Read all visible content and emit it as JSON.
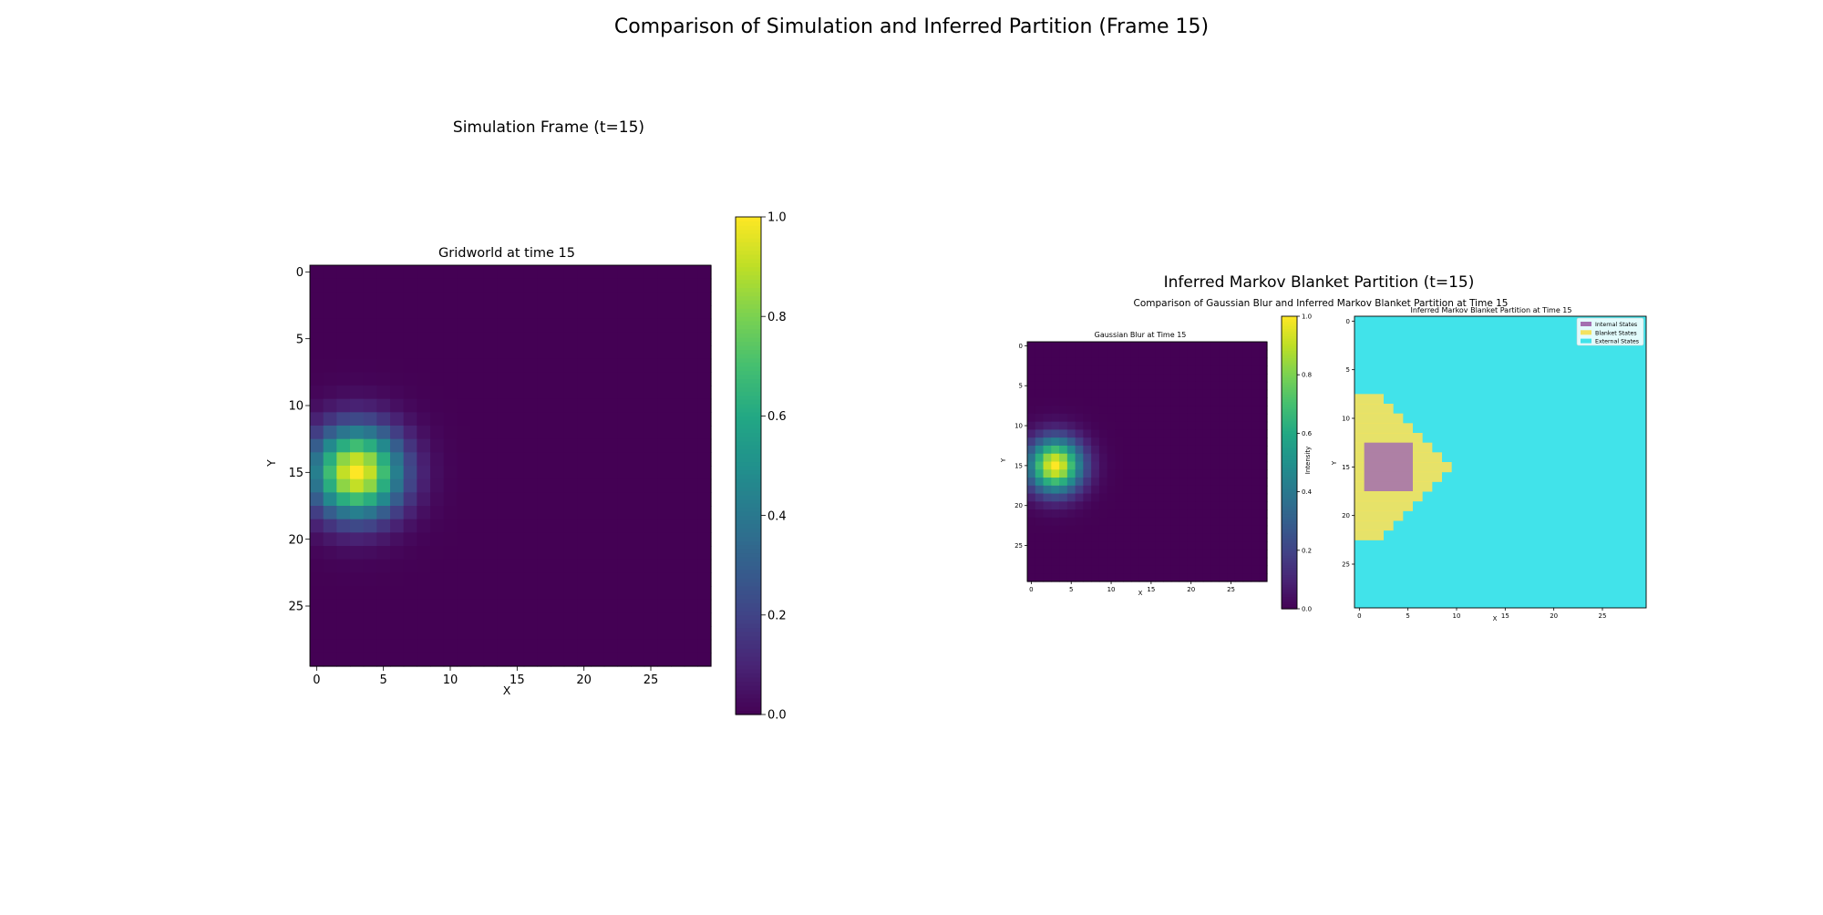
{
  "page": {
    "suptitle": "Comparison of Simulation and Inferred Partition (Frame 15)",
    "left_panel_title": "Simulation Frame (t=15)",
    "right_panel_title": "Inferred Markov Blanket Partition (t=15)"
  },
  "chart_data": [
    {
      "type": "heatmap",
      "title": "Gridworld at time 15",
      "xlabel": "X",
      "ylabel": "Y",
      "grid_size": [
        30,
        30
      ],
      "blob_center": [
        3,
        15
      ],
      "blob_sigma": 2.3,
      "xticks": [
        0,
        5,
        10,
        15,
        20,
        25
      ],
      "yticks": [
        0,
        5,
        10,
        15,
        20,
        25
      ],
      "colormap": "viridis",
      "colorbar": {
        "label": "",
        "range": [
          0,
          1
        ],
        "ticks": [
          "0.0",
          "0.2",
          "0.4",
          "0.6",
          "0.8",
          "1.0"
        ]
      },
      "grid": false
    },
    {
      "type": "heatmap",
      "figure_title": "Comparison of Gaussian Blur and Inferred Markov Blanket Partition at Time 15",
      "title": "Gaussian Blur at Time 15",
      "xlabel": "X",
      "ylabel": "Y",
      "grid_size": [
        30,
        30
      ],
      "blob_center": [
        3,
        15
      ],
      "blob_sigma": 2.3,
      "xticks": [
        0,
        5,
        10,
        15,
        20,
        25
      ],
      "yticks": [
        0,
        5,
        10,
        15,
        20,
        25
      ],
      "colormap": "viridis",
      "colorbar": {
        "label": "Intensity",
        "range": [
          0,
          1
        ],
        "ticks": [
          "0.0",
          "0.2",
          "0.4",
          "0.6",
          "0.8",
          "1.0"
        ]
      }
    },
    {
      "type": "heatmap",
      "title": "Inferred Markov Blanket Partition at Time 15",
      "xlabel": "X",
      "ylabel": "Y",
      "grid_size": [
        30,
        30
      ],
      "xticks": [
        0,
        5,
        10,
        15,
        20,
        25
      ],
      "yticks": [
        0,
        5,
        10,
        15,
        20,
        25
      ],
      "legend": {
        "placement": "upper-right",
        "items": [
          {
            "label": "Internal States",
            "color": "#a36fb0"
          },
          {
            "label": "Blanket States",
            "color": "#f3e25f"
          },
          {
            "label": "External States",
            "color": "#41e3ea"
          }
        ]
      },
      "internal_region": {
        "x": [
          1,
          5
        ],
        "y": [
          13,
          17
        ]
      },
      "blanket_rows": [
        {
          "y": 8,
          "x_max": 2
        },
        {
          "y": 9,
          "x_max": 3
        },
        {
          "y": 10,
          "x_max": 4
        },
        {
          "y": 11,
          "x_max": 5
        },
        {
          "y": 12,
          "x_max": 6
        },
        {
          "y": 13,
          "x_max": 7
        },
        {
          "y": 14,
          "x_max": 8
        },
        {
          "y": 15,
          "x_max": 9
        },
        {
          "y": 16,
          "x_max": 8
        },
        {
          "y": 17,
          "x_max": 7
        },
        {
          "y": 18,
          "x_max": 6
        },
        {
          "y": 19,
          "x_max": 5
        },
        {
          "y": 20,
          "x_max": 4
        },
        {
          "y": 21,
          "x_max": 3
        },
        {
          "y": 22,
          "x_max": 2
        }
      ]
    }
  ]
}
